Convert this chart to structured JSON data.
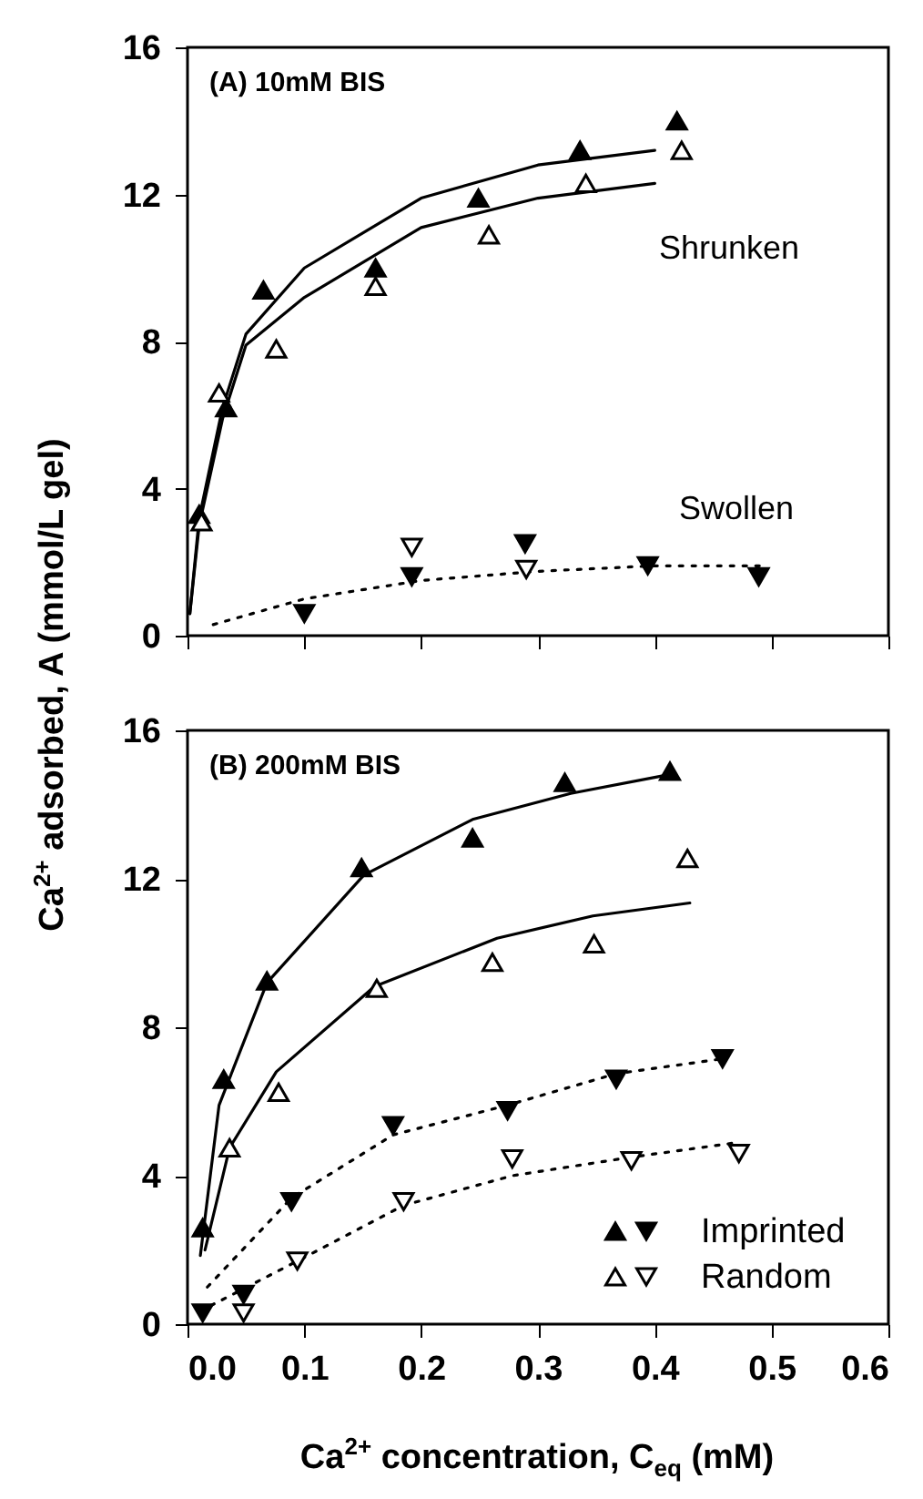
{
  "chart_data": [
    {
      "type": "scatter",
      "title": "(A) 10mM BIS",
      "ylabel": "Ca$^{2+}$ adsorbed, A (mmol/L gel)",
      "xlim": [
        0,
        0.6
      ],
      "ylim": [
        0,
        16
      ],
      "xticks": [
        {
          "value": 0,
          "label": null
        },
        {
          "value": 0.1,
          "label": null
        },
        {
          "value": 0.2,
          "label": null
        },
        {
          "value": 0.3,
          "label": null
        },
        {
          "value": 0.4,
          "label": null
        },
        {
          "value": 0.5,
          "label": null
        },
        {
          "value": 0.6,
          "label": null
        }
      ],
      "yticks": [
        0,
        4,
        8,
        12,
        16
      ],
      "tick_labels": "y",
      "grid": false,
      "annotations": [
        "Shrunken",
        "Swollen"
      ],
      "series": [
        {
          "marker": "triangle-up",
          "color": "#000000",
          "x": [
            0.01,
            0.033,
            0.065,
            0.161,
            0.249,
            0.336,
            0.419
          ],
          "values": [
            3.3,
            6.2,
            9.4,
            10.0,
            11.9,
            13.2,
            14.0
          ]
        },
        {
          "marker": "triangle-up",
          "color": "#ffffff",
          "x": [
            0.012,
            0.027,
            0.076,
            0.161,
            0.258,
            0.341,
            0.423
          ],
          "values": [
            3.1,
            6.6,
            7.8,
            9.5,
            10.9,
            12.3,
            13.2
          ]
        },
        {
          "marker": "triangle-down",
          "color": "#000000",
          "x": [
            0.1,
            0.192,
            0.289,
            0.394,
            0.489
          ],
          "values": [
            0.6,
            1.6,
            2.5,
            1.9,
            1.6
          ]
        },
        {
          "marker": "triangle-down",
          "color": "#ffffff",
          "x": [
            0.192,
            0.29
          ],
          "values": [
            2.4,
            1.8
          ]
        },
        {
          "type": "line",
          "line_style": "solid",
          "color": "#000000",
          "x": [
            0.002,
            0.01,
            0.03,
            0.05,
            0.1,
            0.2,
            0.3,
            0.4
          ],
          "values": [
            0.6,
            3.2,
            6.2,
            8.2,
            10.0,
            11.9,
            12.8,
            13.2
          ]
        },
        {
          "type": "line",
          "line_style": "solid",
          "color": "#000000",
          "x": [
            0.002,
            0.01,
            0.03,
            0.05,
            0.1,
            0.2,
            0.3,
            0.4
          ],
          "values": [
            0.6,
            3.0,
            5.9,
            7.9,
            9.2,
            11.1,
            11.9,
            12.3
          ]
        },
        {
          "type": "line",
          "line_style": "dotted",
          "color": "#000000",
          "x": [
            0.022,
            0.1,
            0.2,
            0.3,
            0.4,
            0.49
          ],
          "values": [
            0.3,
            1.0,
            1.5,
            1.75,
            1.9,
            1.9
          ]
        }
      ]
    },
    {
      "type": "scatter",
      "title": "(B) 200mM BIS",
      "xlabel": "Ca$^{2+}$ concentration, C$_{eq}$ (mM)",
      "xlim": [
        0,
        0.6
      ],
      "ylim": [
        0,
        16
      ],
      "xticks": [
        {
          "value": 0,
          "label": "0.0"
        },
        {
          "value": 0.1,
          "label": "0.1"
        },
        {
          "value": 0.2,
          "label": "0.2"
        },
        {
          "value": 0.3,
          "label": "0.3"
        },
        {
          "value": 0.4,
          "label": "0.4"
        },
        {
          "value": 0.5,
          "label": "0.5"
        },
        {
          "value": 0.6,
          "label": "0.6"
        }
      ],
      "yticks": [
        0,
        4,
        8,
        12,
        16
      ],
      "grid": false,
      "legend": "bottom right",
      "series": [
        {
          "name": "Imprinted",
          "marker": "triangle-up",
          "color": "#000000",
          "x": [
            0.013,
            0.031,
            0.068,
            0.149,
            0.244,
            0.323,
            0.413
          ],
          "values": [
            2.6,
            6.6,
            9.25,
            12.3,
            13.1,
            14.6,
            14.9
          ]
        },
        {
          "marker": "triangle-down",
          "color": "#000000",
          "x": [
            0.013,
            0.048,
            0.089,
            0.176,
            0.274,
            0.367,
            0.458
          ],
          "values": [
            0.3,
            0.8,
            3.3,
            5.35,
            5.75,
            6.6,
            7.15
          ]
        },
        {
          "name": "Random",
          "marker": "triangle-up",
          "color": "#ffffff",
          "x": [
            0.036,
            0.078,
            0.162,
            0.261,
            0.348,
            0.428
          ],
          "values": [
            4.75,
            6.25,
            9.05,
            9.75,
            10.25,
            12.55
          ]
        },
        {
          "marker": "triangle-down",
          "color": "#ffffff",
          "x": [
            0.048,
            0.094,
            0.185,
            0.278,
            0.38,
            0.472
          ],
          "values": [
            0.3,
            1.7,
            3.3,
            4.45,
            4.4,
            4.6
          ]
        },
        {
          "type": "line",
          "line_style": "solid",
          "color": "#000000",
          "x": [
            0.011,
            0.027,
            0.068,
            0.151,
            0.244,
            0.328,
            0.411
          ],
          "values": [
            1.85,
            5.9,
            9.2,
            12.1,
            13.6,
            14.3,
            14.8
          ]
        },
        {
          "type": "line",
          "line_style": "solid",
          "color": "#000000",
          "x": [
            0.015,
            0.036,
            0.076,
            0.16,
            0.265,
            0.347,
            0.43
          ],
          "values": [
            2.0,
            4.75,
            6.8,
            9.1,
            10.4,
            11.0,
            11.35
          ]
        },
        {
          "type": "line",
          "line_style": "dotted",
          "color": "#000000",
          "x": [
            0.017,
            0.089,
            0.176,
            0.274,
            0.367,
            0.458
          ],
          "values": [
            1.0,
            3.4,
            5.1,
            5.9,
            6.75,
            7.15
          ]
        },
        {
          "type": "line",
          "line_style": "dotted",
          "color": "#000000",
          "x": [
            0.02,
            0.094,
            0.185,
            0.278,
            0.38,
            0.472
          ],
          "values": [
            0.5,
            1.7,
            3.2,
            4.0,
            4.5,
            4.9
          ]
        }
      ]
    }
  ]
}
